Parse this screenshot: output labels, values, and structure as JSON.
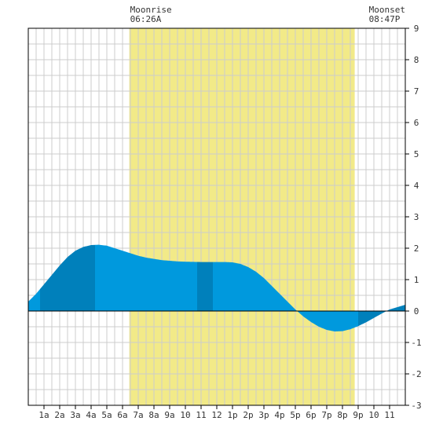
{
  "chart_data": {
    "type": "area",
    "x_tick_labels": [
      "1a",
      "2a",
      "3a",
      "4a",
      "5a",
      "6a",
      "7a",
      "8a",
      "9a",
      "10",
      "11",
      "12",
      "1p",
      "2p",
      "3p",
      "4p",
      "5p",
      "6p",
      "7p",
      "8p",
      "9p",
      "10",
      "11"
    ],
    "y_tick_labels": [
      "9",
      "8",
      "7",
      "6",
      "5",
      "4",
      "3",
      "2",
      "1",
      "0",
      "-1",
      "-2",
      "-3"
    ],
    "xlim": [
      0,
      24
    ],
    "ylim": [
      -3,
      9
    ],
    "grid": true,
    "moonrise": {
      "label": "Moonrise",
      "time": "06:26A",
      "hour": 6.43
    },
    "moonset": {
      "label": "Moonset",
      "time": "08:47P",
      "hour": 20.78
    },
    "series": [
      {
        "points": [
          [
            0,
            0.3
          ],
          [
            0.5,
            0.55
          ],
          [
            1,
            0.85
          ],
          [
            1.5,
            1.15
          ],
          [
            2,
            1.45
          ],
          [
            2.5,
            1.72
          ],
          [
            3,
            1.92
          ],
          [
            3.5,
            2.04
          ],
          [
            4,
            2.1
          ],
          [
            4.5,
            2.11
          ],
          [
            5,
            2.08
          ],
          [
            5.5,
            2.0
          ],
          [
            6,
            1.92
          ],
          [
            6.5,
            1.84
          ],
          [
            7,
            1.76
          ],
          [
            7.5,
            1.7
          ],
          [
            8,
            1.66
          ],
          [
            8.5,
            1.62
          ],
          [
            9,
            1.6
          ],
          [
            9.5,
            1.58
          ],
          [
            10,
            1.57
          ],
          [
            11,
            1.56
          ],
          [
            12,
            1.56
          ],
          [
            12.5,
            1.56
          ],
          [
            13,
            1.55
          ],
          [
            13.5,
            1.5
          ],
          [
            14,
            1.4
          ],
          [
            14.5,
            1.25
          ],
          [
            15,
            1.05
          ],
          [
            15.5,
            0.8
          ],
          [
            16,
            0.55
          ],
          [
            16.5,
            0.3
          ],
          [
            17,
            0.05
          ],
          [
            17.5,
            -0.17
          ],
          [
            18,
            -0.35
          ],
          [
            18.5,
            -0.5
          ],
          [
            19,
            -0.6
          ],
          [
            19.5,
            -0.65
          ],
          [
            20,
            -0.64
          ],
          [
            20.5,
            -0.58
          ],
          [
            21,
            -0.48
          ],
          [
            21.5,
            -0.36
          ],
          [
            22,
            -0.22
          ],
          [
            22.5,
            -0.08
          ],
          [
            23,
            0.05
          ],
          [
            24,
            0.2
          ]
        ]
      }
    ],
    "colors": {
      "moon_band": "#f2ea88",
      "water_light": "#0099dd",
      "water_dark": "#0080bb",
      "grid": "#cccccc",
      "background": "#ffffff",
      "text": "#333333"
    }
  }
}
